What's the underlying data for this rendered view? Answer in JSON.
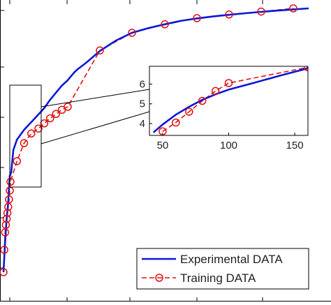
{
  "chart_data": [
    {
      "type": "line",
      "role": "main",
      "title": "",
      "xlabel": "",
      "ylabel": "",
      "grid": false,
      "legend_position": "bottom-right",
      "colors": {
        "experimental": "#0a18d8",
        "training": "#e01010"
      },
      "series": [
        {
          "name": "Experimental DATA",
          "style": "solid-line",
          "color": "#0a18d8",
          "x": [
            2,
            4,
            6,
            8,
            9,
            10,
            12,
            15,
            20,
            25,
            30,
            35,
            40,
            45,
            50,
            60,
            70,
            80,
            90,
            100,
            110,
            120,
            130,
            140,
            150,
            160,
            200,
            250,
            300,
            350,
            400,
            450,
            500,
            550,
            600,
            650,
            700,
            750,
            800,
            850
          ],
          "y": [
            0.7,
            1.3,
            1.95,
            2.5,
            2.75,
            2.95,
            3.0,
            3.3,
            3.6,
            3.8,
            4.0,
            4.15,
            4.3,
            4.45,
            4.6,
            4.85,
            5.1,
            5.3,
            5.5,
            5.65,
            5.78,
            5.9,
            6.0,
            6.08,
            6.16,
            6.24,
            6.6,
            7.0,
            7.3,
            7.55,
            7.75,
            7.93,
            8.08,
            8.22,
            8.34,
            8.45,
            8.55,
            8.64,
            8.72,
            8.8
          ]
        },
        {
          "name": "Training DATA",
          "style": "dashed-line-circle-markers",
          "color": "#e01010",
          "x": [
            2,
            3,
            4,
            5,
            6,
            7,
            8,
            9,
            10,
            11,
            20,
            30,
            40,
            50,
            60,
            70,
            80,
            90,
            100,
            200,
            300,
            400,
            500,
            600,
            700,
            800
          ],
          "y": [
            0.7,
            1.15,
            1.5,
            1.75,
            1.95,
            2.15,
            2.35,
            2.55,
            2.7,
            2.85,
            3.15,
            3.5,
            3.85,
            4.05,
            4.25,
            4.45,
            4.62,
            4.78,
            4.9,
            6.62,
            7.3,
            7.75,
            8.1,
            8.36,
            8.57,
            8.8
          ]
        }
      ]
    },
    {
      "type": "line",
      "role": "inset",
      "xlim": [
        40,
        160
      ],
      "ylim": [
        3.4,
        6.9
      ],
      "x_ticks": [
        "50",
        "100",
        "150"
      ],
      "y_ticks": [
        "4",
        "5",
        "6"
      ],
      "series": [
        {
          "name": "Experimental DATA",
          "color": "#0a18d8",
          "x": [
            43,
            50,
            60,
            70,
            80,
            90,
            100,
            120,
            140,
            163
          ],
          "y": [
            3.55,
            3.95,
            4.45,
            4.85,
            5.2,
            5.48,
            5.72,
            6.08,
            6.45,
            6.85
          ]
        },
        {
          "name": "Training DATA",
          "color": "#e01010",
          "x": [
            50,
            60,
            70,
            80,
            90,
            100,
            160
          ],
          "y": [
            3.6,
            4.05,
            4.6,
            5.15,
            5.65,
            6.05,
            6.85
          ]
        }
      ]
    }
  ]
}
